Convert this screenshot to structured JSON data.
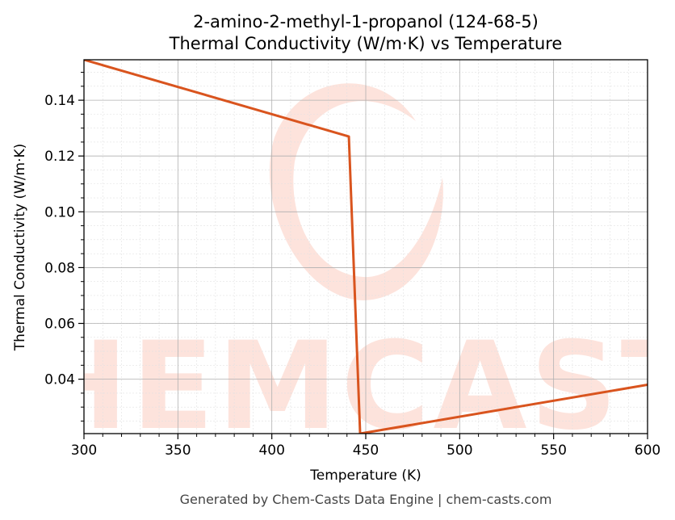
{
  "chart_data": {
    "type": "line",
    "title": "2-amino-2-methyl-1-propanol (124-68-5)",
    "subtitle": "Thermal Conductivity (W/m·K) vs Temperature",
    "xlabel": "Temperature (K)",
    "ylabel": "Thermal Conductivity (W/m·K)",
    "xlim": [
      300,
      600
    ],
    "ylim": [
      0.0205,
      0.1545
    ],
    "x_ticks": [
      300,
      350,
      400,
      450,
      500,
      550,
      600
    ],
    "y_ticks": [
      0.04,
      0.06,
      0.08,
      0.1,
      0.12,
      0.14
    ],
    "grid": true,
    "series": [
      {
        "color": "#d9541e",
        "x": [
          300,
          441,
          447,
          600
        ],
        "y": [
          0.1545,
          0.127,
          0.0205,
          0.038
        ]
      }
    ]
  },
  "watermark": {
    "text": "CHEMCASTS",
    "color": "#fde3dc"
  },
  "footer": "Generated by Chem-Casts Data Engine | chem-casts.com"
}
